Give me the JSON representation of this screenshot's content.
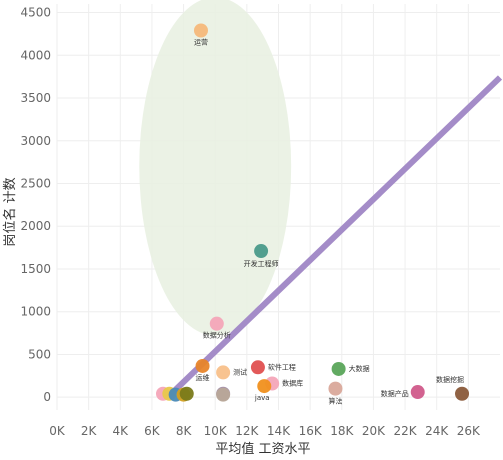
{
  "chart_data": {
    "type": "scatter",
    "xlabel": "平均值 工资水平",
    "ylabel": "岗位名 计数",
    "xlim": [
      0,
      28000
    ],
    "ylim": [
      -150,
      4600
    ],
    "x_ticks": [
      0,
      2000,
      4000,
      6000,
      8000,
      10000,
      12000,
      14000,
      16000,
      18000,
      20000,
      22000,
      24000,
      26000
    ],
    "x_tick_labels": [
      "0K",
      "2K",
      "4K",
      "6K",
      "8K",
      "10K",
      "12K",
      "14K",
      "16K",
      "18K",
      "20K",
      "22K",
      "24K",
      "26K"
    ],
    "y_ticks": [
      0,
      500,
      1000,
      1500,
      2000,
      2500,
      3000,
      3500,
      4000,
      4500
    ],
    "y_tick_labels": [
      "0",
      "500",
      "1000",
      "1500",
      "2000",
      "2500",
      "3000",
      "3500",
      "4000",
      "4500"
    ],
    "grid": true,
    "points": [
      {
        "label": "运营",
        "x": 9100,
        "y": 4290,
        "color": "#f5b87a"
      },
      {
        "label": "开发工程师",
        "x": 12900,
        "y": 1710,
        "color": "#4a9a8a"
      },
      {
        "label": "数据分析",
        "x": 10100,
        "y": 860,
        "color": "#f4a5b8"
      },
      {
        "label": "软件工程",
        "x": 12700,
        "y": 350,
        "color": "#e05050"
      },
      {
        "label": "大数据",
        "x": 17800,
        "y": 330,
        "color": "#5aa55a"
      },
      {
        "label": "运维",
        "x": 9200,
        "y": 365,
        "color": "#e8852a"
      },
      {
        "label": "测试",
        "x": 10500,
        "y": 290,
        "color": "#f8c08a"
      },
      {
        "label": "数据库",
        "x": 13600,
        "y": 160,
        "color": "#f4a5b8"
      },
      {
        "label": "java",
        "x": 13100,
        "y": 130,
        "color": "#f0901e"
      },
      {
        "label": "算法",
        "x": 17600,
        "y": 100,
        "color": "#d9a89a"
      },
      {
        "label": "数据产品",
        "x": 22800,
        "y": 60,
        "color": "#d05a8a"
      },
      {
        "label": "数据挖掘",
        "x": 25600,
        "y": 40,
        "color": "#8a5a3a"
      },
      {
        "label": "",
        "x": 6700,
        "y": 40,
        "color": "#f4a5b8"
      },
      {
        "label": "",
        "x": 7100,
        "y": 40,
        "color": "#e8c84a"
      },
      {
        "label": "",
        "x": 7500,
        "y": 30,
        "color": "#4a8ab8"
      },
      {
        "label": "",
        "x": 8000,
        "y": 30,
        "color": "#d4a020"
      },
      {
        "label": "",
        "x": 8200,
        "y": 40,
        "color": "#7a7a1a"
      },
      {
        "label": "",
        "x": 10500,
        "y": 40,
        "color": "#a08aa8"
      },
      {
        "label": "",
        "x": 10500,
        "y": 30,
        "color": "#b8a898"
      }
    ],
    "trend_line": {
      "x": [
        7000,
        28000
      ],
      "y": [
        0,
        3740
      ],
      "color": "#a48cc8"
    },
    "highlight_ellipse": {
      "cx": 10000,
      "cy": 2700,
      "rx": 4800,
      "ry": 1980,
      "color": "#e8f0e0"
    }
  }
}
